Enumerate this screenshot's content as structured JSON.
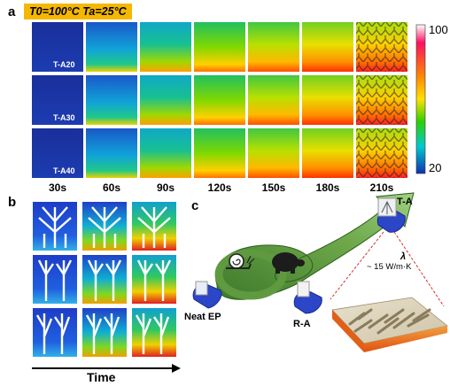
{
  "panel_a": {
    "letter": "a",
    "condition": "T0=100°C Ta=25°C",
    "times": [
      "30s",
      "60s",
      "90s",
      "120s",
      "150s",
      "180s",
      "210s"
    ],
    "rows": [
      {
        "label": "T-A20"
      },
      {
        "label": "T-A30"
      },
      {
        "label": "T-A40"
      }
    ],
    "colorbar": {
      "max_label": "100",
      "min_label": "20",
      "colors": [
        "#ffffff",
        "#ff1060",
        "#ff8a00",
        "#ffe000",
        "#30d000",
        "#00c8d0",
        "#1030b0"
      ]
    }
  },
  "panel_b": {
    "letter": "b",
    "axis_label": "Time"
  },
  "panel_c": {
    "letter": "c",
    "labels": {
      "neat": "Neat EP",
      "ra": "R-A",
      "ta": "T-A",
      "lambda": "λ",
      "conductivity": "~ 15 W/m·K"
    }
  }
}
